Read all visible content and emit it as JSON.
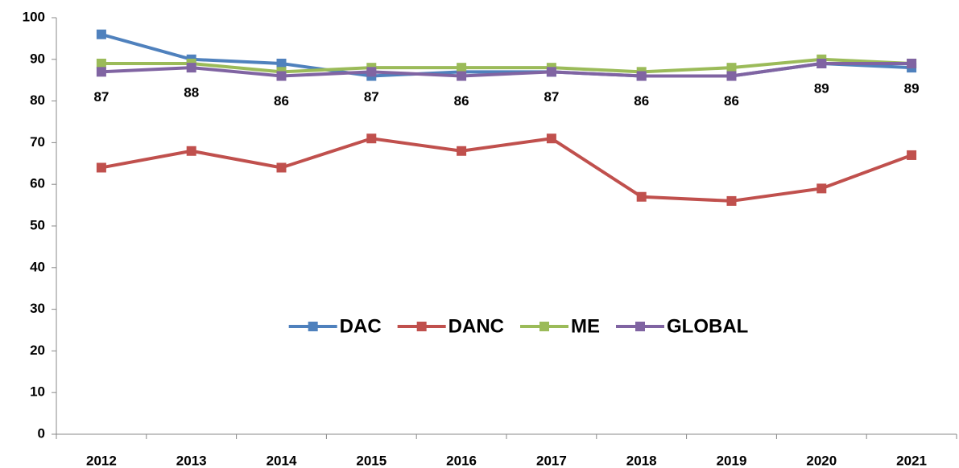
{
  "chart_data": {
    "type": "line",
    "categories": [
      "2012",
      "2013",
      "2014",
      "2015",
      "2016",
      "2017",
      "2018",
      "2019",
      "2020",
      "2021"
    ],
    "series": [
      {
        "name": "DAC",
        "color": "#4f81bd",
        "values": [
          96,
          90,
          89,
          86,
          87,
          87,
          86,
          86,
          89,
          88
        ]
      },
      {
        "name": "DANC",
        "color": "#c0504d",
        "values": [
          64,
          68,
          64,
          71,
          68,
          71,
          57,
          56,
          59,
          67
        ]
      },
      {
        "name": "ME",
        "color": "#9bbb59",
        "values": [
          89,
          89,
          87,
          88,
          88,
          88,
          87,
          88,
          90,
          89
        ]
      },
      {
        "name": "GLOBAL",
        "color": "#8064a2",
        "values": [
          87,
          88,
          86,
          87,
          86,
          87,
          86,
          86,
          89,
          89
        ],
        "show_value_labels": true
      }
    ],
    "ylim": [
      0,
      100
    ],
    "yticks": [
      0,
      10,
      20,
      30,
      40,
      50,
      60,
      70,
      80,
      90,
      100
    ],
    "grid": false,
    "legend": "center"
  }
}
